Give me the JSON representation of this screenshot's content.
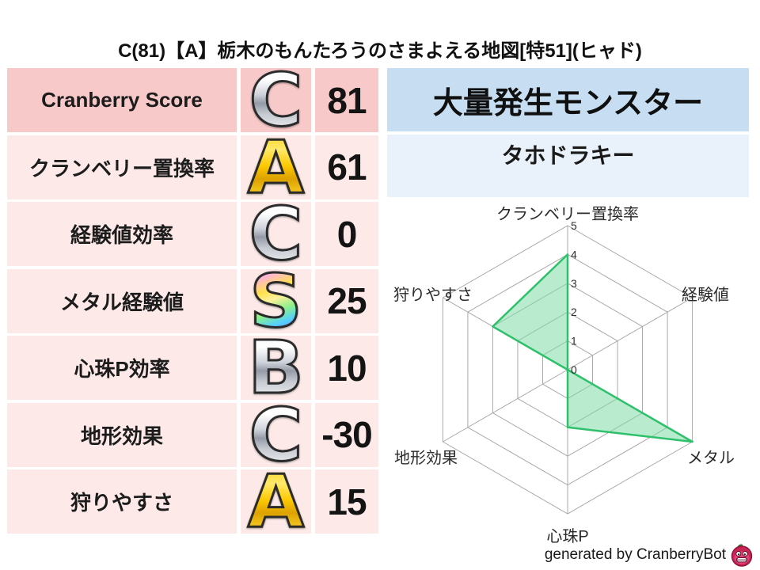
{
  "title": "C(81)【A】栃木のもんたろうのさまよえる地図[特51](ヒャド)",
  "stats": {
    "rows": [
      {
        "label": "Cranberry Score",
        "grade": "C",
        "value": "81"
      },
      {
        "label": "クランベリー置換率",
        "grade": "A",
        "value": "61"
      },
      {
        "label": "経験値効率",
        "grade": "C",
        "value": "0"
      },
      {
        "label": "メタル経験値",
        "grade": "S",
        "value": "25"
      },
      {
        "label": "心珠P効率",
        "grade": "B",
        "value": "10"
      },
      {
        "label": "地形効果",
        "grade": "C",
        "value": "-30"
      },
      {
        "label": "狩りやすさ",
        "grade": "A",
        "value": "15"
      }
    ]
  },
  "monster": {
    "header": "大量発生モンスター",
    "name": "タホドラキー"
  },
  "chart_data": {
    "type": "radar",
    "axes": [
      "クランベリー置換率",
      "経験値",
      "メタル",
      "心珠P",
      "地形効果",
      "狩りやすさ"
    ],
    "values": [
      4,
      0,
      5,
      2,
      0,
      3
    ],
    "ticks": [
      0,
      1,
      2,
      3,
      4,
      5
    ],
    "max": 5,
    "grid": true,
    "legend": "none",
    "fill_color": "#7fdca6",
    "stroke_color": "#2ec06a",
    "grid_color": "#a9a9a9"
  },
  "colors": {
    "row_header_pink": "#f8c9c9",
    "row_pink": "#fdeae8",
    "monster_header_blue": "#c6ddf2",
    "monster_value_blue": "#e9f1fa"
  },
  "footer": {
    "credit": "generated by CranberryBot"
  }
}
